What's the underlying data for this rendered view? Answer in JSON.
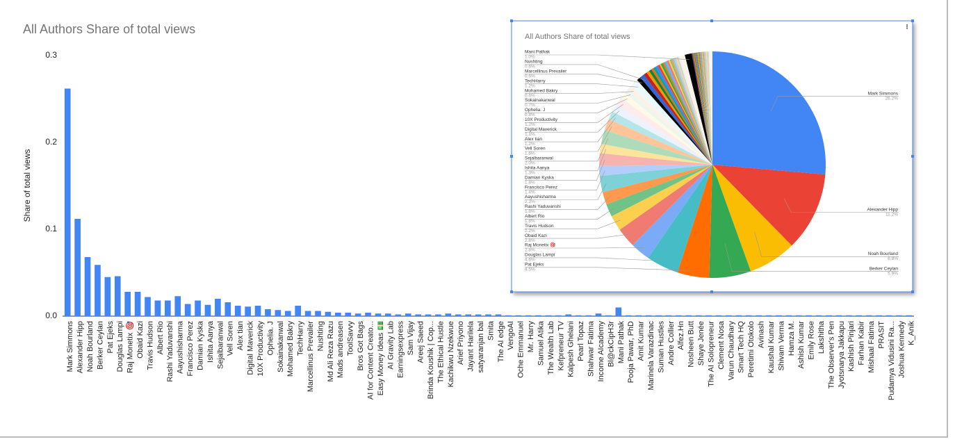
{
  "chart_data": [
    {
      "type": "bar",
      "title": "All Authors Share of total views",
      "y_label": "Share of total views",
      "color": "#4285f4",
      "categories": [
        "Mark Simmons",
        "Alexander Hipp",
        "Noah Bourland",
        "Berker Ceylan",
        "Pat Ejeks",
        "Douglas Lampi",
        "Raj Monetix 🎯",
        "Obaid Kazi",
        "Travis Hudson",
        "Albert Rio",
        "Rashi Yaduvanshi",
        "Aayushisharma",
        "Francisco Perez",
        "Damian Kyska",
        "Ishita Aanya",
        "Sejalbaranwal",
        "Vell Soren",
        "Alex tian",
        "Digital Maverick",
        "10X Productivity",
        "Ophelia. J",
        "Sokainakanwal",
        "Mohamed Bakry",
        "TechHarry",
        "Marcellinus Prevailer",
        "Nushting",
        "Md Ali Reza Razu",
        "Mads andreasen",
        "ToolSavvy",
        "Bros Got Bags",
        "AI for Content Creato...",
        "Easy Money Ideas 💵",
        "AI Gravity Lab",
        "Earningsexpress",
        "Sam Vijay",
        "Areej Saeed",
        "Brinda Koushik | Cop...",
        "The Ethical Hustle",
        "Kachikwu Nzekwue",
        "Arief Priyono",
        "Jayant Harilela",
        "satyaranjan bal",
        "Smita",
        "The AI edge",
        "VengoAI",
        "Oche Emmanuel",
        "Mr. Harry",
        "Samuel Atika",
        "The Wealth Lab",
        "Kefpreneur TV",
        "Kalpesh Ghelani",
        "Pearl Topaz",
        "Shahwar Fatima",
        "Income AIcademy",
        "Bl@ckCipH3r",
        "Mani Pathak",
        "Pooja Pawar, PhD",
        "Amit Kumar",
        "Marinela Varazdinac",
        "Suman Hustles",
        "Andre Collier",
        "Alfez.Hn",
        "Nosheen Butt",
        "Shaye Jenée",
        "The AI Solopreneur",
        "Clement Nosa",
        "Varun Chaudhary",
        "Smart Tech HQ",
        "Peretimi Otokolo",
        "Avinash",
        "Kaushal Kumar",
        "Shivam Verma",
        "Hamza M.",
        "Ashish Kumar",
        "Emily Rose",
        "Lakshitha",
        "The Observer's Pen",
        "Jyotsnarya Jakkapu",
        "Kashish Pinjari",
        "Farhan Kabir",
        "Mishaal Fatima",
        "PRASIT",
        "Pudamya Vidusini Ra...",
        "Joshua Kennedy",
        "K_Anik"
      ],
      "values": [
        0.262,
        0.112,
        0.068,
        0.059,
        0.045,
        0.046,
        0.028,
        0.028,
        0.022,
        0.018,
        0.018,
        0.023,
        0.014,
        0.018,
        0.013,
        0.02,
        0.016,
        0.012,
        0.011,
        0.012,
        0.008,
        0.007,
        0.006,
        0.012,
        0.006,
        0.006,
        0.005,
        0.004,
        0.004,
        0.003,
        0.004,
        0.003,
        0.003,
        0.002,
        0.003,
        0.002,
        0.002,
        0.002,
        0.003,
        0.002,
        0.002,
        0.002,
        0.002,
        0.002,
        0.001,
        0.001,
        0.001,
        0.001,
        0.001,
        0.001,
        0.002,
        0.001,
        0.001,
        0.003,
        0.001,
        0.01,
        0.001,
        0.001,
        0.001,
        0.001,
        0.001,
        0.001,
        0.001,
        0.001,
        0.001,
        0.001,
        0.001,
        0.001,
        0.001,
        0.001,
        0.001,
        0.001,
        0.001,
        0.001,
        0.001,
        0.001,
        0.001,
        0.001,
        0.001,
        0.001,
        0.001,
        0.001,
        0.001,
        0.001,
        0.001
      ],
      "ylim": [
        0,
        0.3
      ],
      "yticks": [
        {
          "value": 0,
          "label": "0.0"
        },
        0.1,
        0.2,
        0.3
      ],
      "grid": false
    },
    {
      "type": "pie",
      "title": "All Authors Share of total views",
      "colors": [
        "#4285f4",
        "#ea4335",
        "#fbbc04",
        "#34a853",
        "#ff6d01",
        "#46bdc6",
        "#7baaf7",
        "#f07b72",
        "#fcd04f",
        "#71c287",
        "#ff994d",
        "#7ed1d7",
        "#b3cefb",
        "#f7b4ae",
        "#fde49b",
        "#aedcba",
        "#ffc599",
        "#b5e5e8",
        "#ecf3fe",
        "#fdeceb",
        "#fffae6",
        "#ebf6ee",
        "#fff0e6",
        "#ecf9fa",
        "#000000",
        "#3367d6",
        "#c5221f",
        "#f29900",
        "#188038",
        "#e8710a",
        "#129eaf"
      ],
      "categories": [
        "Mark Simmons",
        "Alexander Hipp",
        "Noah Bourland",
        "Berker Ceylan",
        "Pat Ejeks",
        "Douglas Lampi",
        "Raj Monetix 🎯",
        "Obaid Kazi",
        "Travis Hudson",
        "Albert Rio",
        "Rashi Yaduvanshi",
        "Aayushisharma",
        "Francisco Perez",
        "Damian Kyska",
        "Ishita Aanya",
        "Sejalbaranwal",
        "Vell Soren",
        "Alex tian",
        "Digital Maverick",
        "10X Productivity",
        "Ophelia. J",
        "Sokainakanwal",
        "Mohamed Bakry",
        "TechHarry",
        "Marcellinus Prevailer",
        "Nushting",
        null,
        null,
        null,
        null,
        null,
        null,
        null,
        null,
        null,
        null,
        null,
        null,
        null,
        null,
        null,
        null,
        null,
        null,
        null,
        null,
        null,
        null,
        null,
        null,
        null,
        null,
        null,
        null,
        null,
        "Mani Pathak",
        null,
        null,
        null,
        null,
        null,
        null,
        null,
        null,
        null,
        null,
        null,
        null,
        null,
        null,
        null,
        null,
        null,
        null,
        null,
        null,
        null,
        null,
        null,
        null,
        null,
        null,
        null,
        null,
        null
      ],
      "values": [
        26.2,
        11.2,
        6.8,
        5.9,
        4.5,
        4.6,
        2.8,
        2.8,
        2.2,
        1.8,
        1.8,
        2.3,
        1.4,
        1.8,
        1.3,
        2.0,
        1.6,
        1.2,
        1.1,
        1.2,
        0.8,
        0.7,
        0.6,
        1.2,
        0.6,
        0.6,
        0.5,
        0.4,
        0.4,
        0.3,
        0.4,
        0.3,
        0.3,
        0.2,
        0.3,
        0.2,
        0.2,
        0.2,
        0.3,
        0.2,
        0.2,
        0.2,
        0.2,
        0.2,
        0.1,
        0.1,
        0.1,
        0.1,
        0.1,
        0.1,
        0.2,
        0.1,
        0.1,
        0.3,
        0.1,
        1.0,
        0.1,
        0.1,
        0.1,
        0.1,
        0.1,
        0.1,
        0.1,
        0.1,
        0.1,
        0.1,
        0.1,
        0.1,
        0.1,
        0.1,
        0.1,
        0.1,
        0.1,
        0.1,
        0.1,
        0.1,
        0.1,
        0.1,
        0.1,
        0.1,
        0.1,
        0.1,
        0.1,
        0.1,
        0.1
      ],
      "value_labels": [
        "26.2%",
        "11.2%",
        "6.8%",
        "5.9%",
        "4.5%",
        "4.6%",
        "2.8%",
        "2.8%",
        "2.2%",
        "1.8%",
        "1.8%",
        "2.3%",
        "1.4%",
        "1.8%",
        "1.3%",
        "2.0%",
        "1.6%",
        "1.2%",
        "1.1%",
        "1.2%",
        "0.8%",
        "0.7%",
        "0.6%",
        "1.2%",
        "0.6%",
        "0.6%",
        null,
        null,
        null,
        null,
        null,
        null,
        null,
        null,
        null,
        null,
        null,
        null,
        null,
        null,
        null,
        null,
        null,
        null,
        null,
        null,
        null,
        null,
        null,
        null,
        null,
        null,
        null,
        null,
        null,
        "1.0%",
        null,
        null,
        null,
        null,
        null,
        null,
        null,
        null,
        null,
        null,
        null,
        null,
        null,
        null,
        null,
        null,
        null,
        null,
        null,
        null,
        null,
        null,
        null,
        null,
        null,
        null,
        null,
        null,
        null
      ]
    }
  ]
}
